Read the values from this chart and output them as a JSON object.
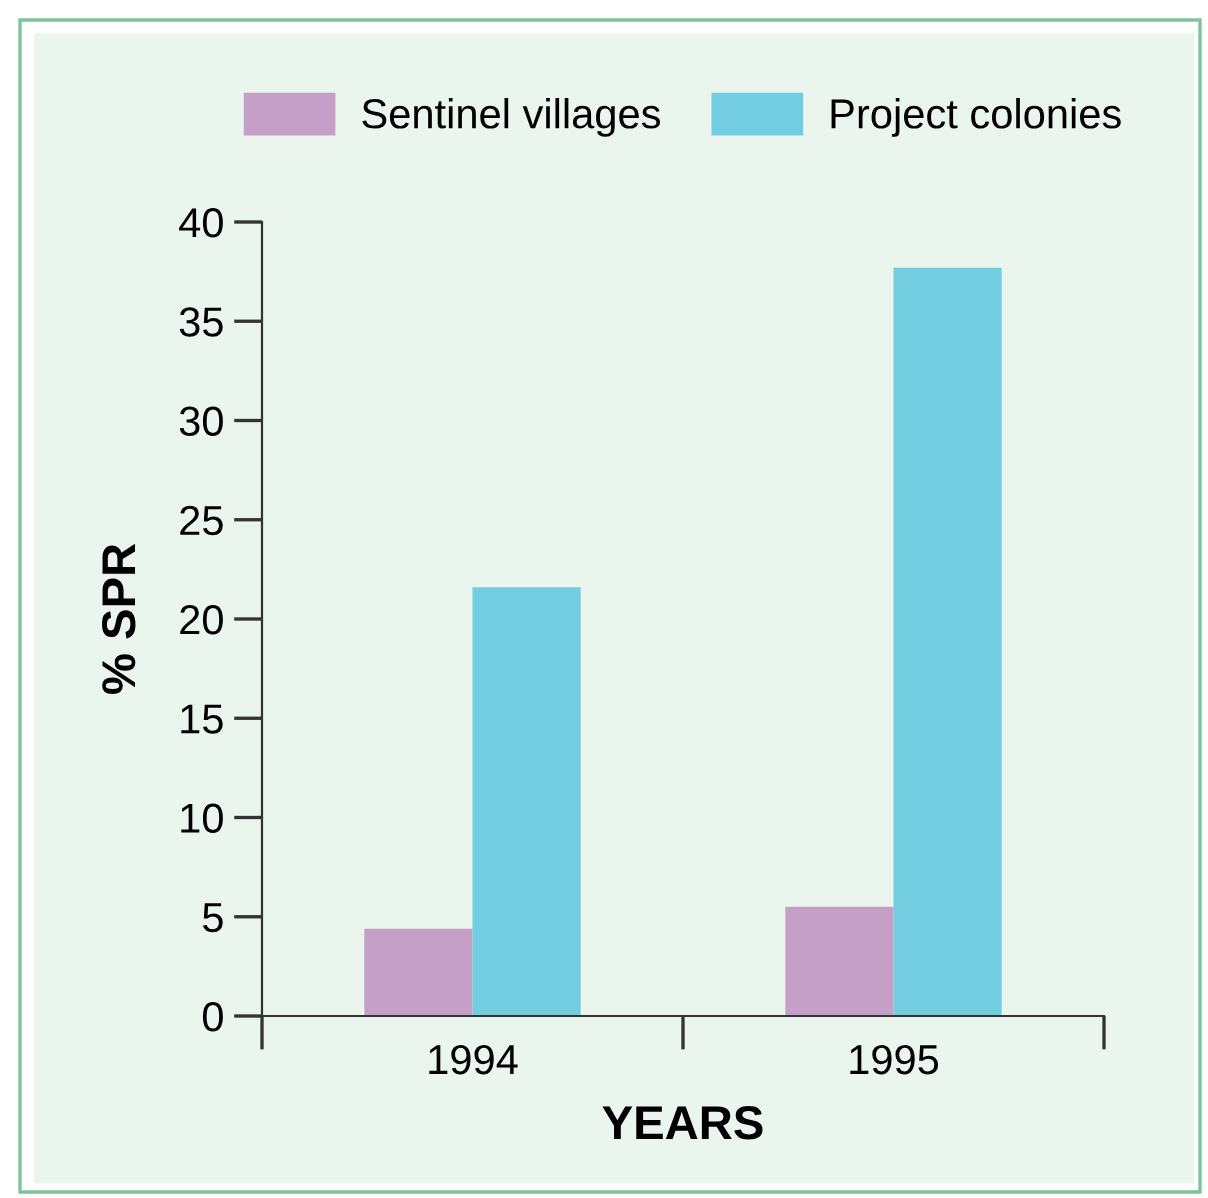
{
  "chart_data": {
    "type": "bar",
    "xlabel": "YEARS",
    "ylabel": "% SPR",
    "categories": [
      "1994",
      "1995"
    ],
    "series": [
      {
        "name": "Sentinel villages",
        "color": "#c59fc8",
        "values": [
          4.4,
          5.5
        ]
      },
      {
        "name": "Project colonies",
        "color": "#72cde0",
        "values": [
          21.6,
          37.7
        ]
      }
    ],
    "ylim": [
      0,
      40
    ],
    "yticks": [
      0,
      5,
      10,
      15,
      20,
      25,
      30,
      35,
      40
    ],
    "grid": false,
    "legend": "top"
  }
}
